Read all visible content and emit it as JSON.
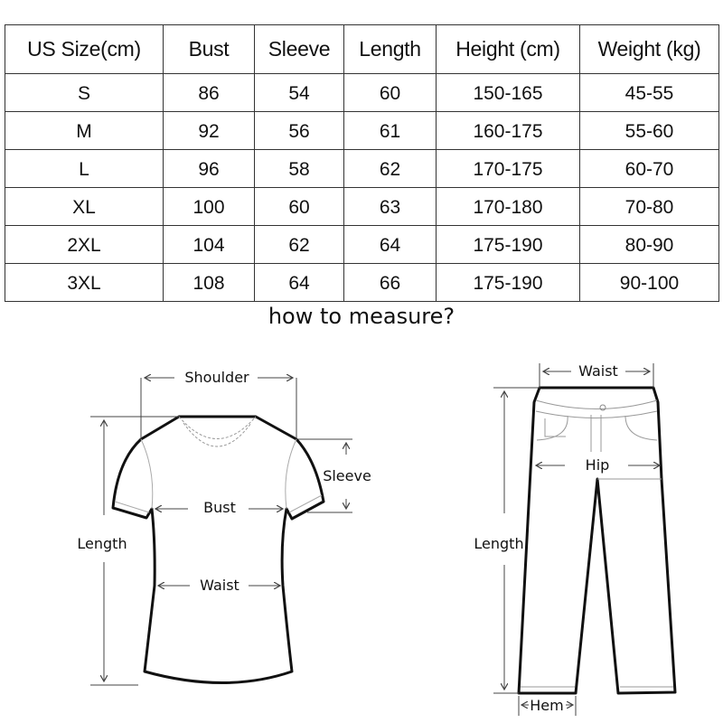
{
  "size_table": {
    "headers": [
      "US Size(cm)",
      "Bust",
      "Sleeve",
      "Length",
      "Height (cm)",
      "Weight (kg)"
    ],
    "rows": [
      [
        "S",
        "86",
        "54",
        "60",
        "150-165",
        "45-55"
      ],
      [
        "M",
        "92",
        "56",
        "61",
        "160-175",
        "55-60"
      ],
      [
        "L",
        "96",
        "58",
        "62",
        "170-175",
        "60-70"
      ],
      [
        "XL",
        "100",
        "60",
        "63",
        "170-180",
        "70-80"
      ],
      [
        "2XL",
        "104",
        "62",
        "64",
        "175-190",
        "80-90"
      ],
      [
        "3XL",
        "108",
        "64",
        "66",
        "175-190",
        "90-100"
      ]
    ]
  },
  "measure_title": "how to measure?",
  "shirt_labels": {
    "shoulder": "Shoulder",
    "sleeve": "Sleeve",
    "bust": "Bust",
    "length": "Length",
    "waist": "Waist"
  },
  "pants_labels": {
    "waist": "Waist",
    "hip": "Hip",
    "length": "Length",
    "hem": "Hem"
  }
}
